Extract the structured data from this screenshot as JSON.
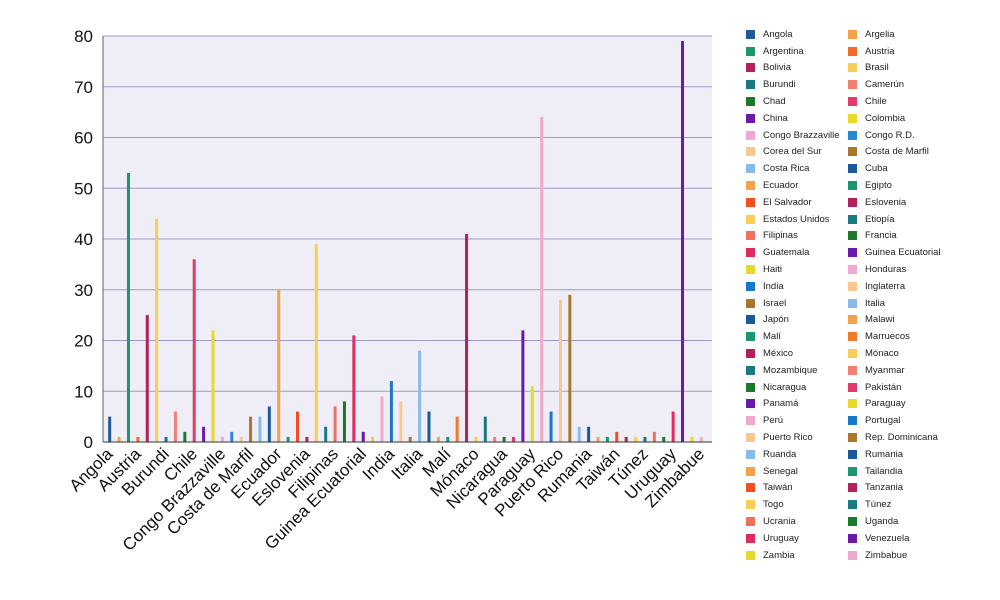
{
  "chart_data": {
    "type": "bar",
    "ylim": [
      0,
      80
    ],
    "yticks": [
      0,
      10,
      20,
      30,
      40,
      50,
      60,
      70,
      80
    ],
    "xticklabels": [
      "Angola",
      "Austria",
      "Burundi",
      "Chile",
      "Congo Brazzaville",
      "Costa de Marfil",
      "Ecuador",
      "Eslovenia",
      "Filipinas",
      "Guinea Ecuatorial",
      "India",
      "Italia",
      "Malí",
      "Mónaco",
      "Nicaragua",
      "Paraguay",
      "Puerto Rico",
      "Rumania",
      "Taiwán",
      "Túnez",
      "Uruguay",
      "Zimbabue"
    ],
    "grid": true,
    "legend_position": "right",
    "series": [
      {
        "name": "Angola",
        "color": "#1f5a94",
        "values": [
          5
        ]
      },
      {
        "name": "Argelia",
        "color": "#f5a04a",
        "values": [
          1
        ]
      },
      {
        "name": "Argentina",
        "color": "#1a9670",
        "values": [
          53
        ]
      },
      {
        "name": "Austria",
        "color": "#f26b28",
        "values": [
          1
        ]
      },
      {
        "name": "Bolivia",
        "color": "#b51f5c",
        "values": [
          25
        ]
      },
      {
        "name": "Brasil",
        "color": "#f7ce55",
        "values": [
          44
        ]
      },
      {
        "name": "Burundi",
        "color": "#1a7a82",
        "values": [
          1
        ]
      },
      {
        "name": "Camerún",
        "color": "#f28070",
        "values": [
          6
        ]
      },
      {
        "name": "Chad",
        "color": "#1a7a2a",
        "values": [
          2
        ]
      },
      {
        "name": "Chile",
        "color": "#e23a6a",
        "values": [
          36
        ]
      },
      {
        "name": "China",
        "color": "#6a1aa8",
        "values": [
          3
        ]
      },
      {
        "name": "Colombia",
        "color": "#e8d82a",
        "values": [
          22
        ]
      },
      {
        "name": "Congo Brazzaville",
        "color": "#f0a8cc",
        "values": [
          1
        ]
      },
      {
        "name": "Congo R.D.",
        "color": "#2888d8",
        "values": [
          2
        ]
      },
      {
        "name": "Corea del Sur",
        "color": "#f8c890",
        "values": [
          1
        ]
      },
      {
        "name": "Costa de Marfil",
        "color": "#a87828",
        "values": [
          5
        ]
      },
      {
        "name": "Costa Rica",
        "color": "#88bce8",
        "values": [
          5
        ]
      },
      {
        "name": "Cuba",
        "color": "#1a5a9a",
        "values": [
          7
        ]
      },
      {
        "name": "Ecuador",
        "color": "#f5a04a",
        "values": [
          30
        ]
      },
      {
        "name": "Egipto",
        "color": "#1a9670",
        "values": [
          1
        ]
      },
      {
        "name": "El Salvador",
        "color": "#f05020",
        "values": [
          6
        ]
      },
      {
        "name": "Eslovenia",
        "color": "#b51f5c",
        "values": [
          1
        ]
      },
      {
        "name": "Estados Unidos",
        "color": "#f7ce55",
        "values": [
          39
        ]
      },
      {
        "name": "Etiopía",
        "color": "#1a7a82",
        "values": [
          3
        ]
      },
      {
        "name": "Filipinas",
        "color": "#f07060",
        "values": [
          7
        ]
      },
      {
        "name": "Francia",
        "color": "#1a7a2a",
        "values": [
          8
        ]
      },
      {
        "name": "Guatemala",
        "color": "#e02a60",
        "values": [
          21
        ]
      },
      {
        "name": "Guinea Ecuatorial",
        "color": "#6a1aa8",
        "values": [
          2
        ]
      },
      {
        "name": "Haiti",
        "color": "#e8d82a",
        "values": [
          1
        ]
      },
      {
        "name": "Honduras",
        "color": "#f0a8cc",
        "values": [
          9
        ]
      },
      {
        "name": "India",
        "color": "#1a78c8",
        "values": [
          12
        ]
      },
      {
        "name": "Inglaterra",
        "color": "#f8c890",
        "values": [
          8
        ]
      },
      {
        "name": "Israel",
        "color": "#a87828",
        "values": [
          1
        ]
      },
      {
        "name": "Italia",
        "color": "#88bce8",
        "values": [
          18
        ]
      },
      {
        "name": "Japón",
        "color": "#1a5a9a",
        "values": [
          6
        ]
      },
      {
        "name": "Malawi",
        "color": "#f5a04a",
        "values": [
          1
        ]
      },
      {
        "name": "Malí",
        "color": "#1a9670",
        "values": [
          1
        ]
      },
      {
        "name": "Marruecos",
        "color": "#f07828",
        "values": [
          5
        ]
      },
      {
        "name": "México",
        "color": "#b51f5c",
        "values": [
          41
        ]
      },
      {
        "name": "Mónaco",
        "color": "#f7ce55",
        "values": [
          1
        ]
      },
      {
        "name": "Mozambique",
        "color": "#1a7a82",
        "values": [
          5
        ]
      },
      {
        "name": "Myanmar",
        "color": "#f28070",
        "values": [
          1
        ]
      },
      {
        "name": "Nicaragua",
        "color": "#1a7a2a",
        "values": [
          1
        ]
      },
      {
        "name": "Pakistán",
        "color": "#e23a6a",
        "values": [
          1
        ]
      },
      {
        "name": "Panamá",
        "color": "#6a1aa8",
        "values": [
          22
        ]
      },
      {
        "name": "Paraguay",
        "color": "#e8d82a",
        "values": [
          11
        ]
      },
      {
        "name": "Perú",
        "color": "#f0a8cc",
        "values": [
          64
        ]
      },
      {
        "name": "Portugal",
        "color": "#1a78c8",
        "values": [
          6
        ]
      },
      {
        "name": "Puerto Rico",
        "color": "#f8c890",
        "values": [
          28
        ]
      },
      {
        "name": "Rep. Dominicana",
        "color": "#a87828",
        "values": [
          29
        ]
      },
      {
        "name": "Ruanda",
        "color": "#88bce8",
        "values": [
          3
        ]
      },
      {
        "name": "Rumania",
        "color": "#1a5a9a",
        "values": [
          3
        ]
      },
      {
        "name": "Senegal",
        "color": "#f5a04a",
        "values": [
          1
        ]
      },
      {
        "name": "Tailandia",
        "color": "#1a9670",
        "values": [
          1
        ]
      },
      {
        "name": "Taiwán",
        "color": "#f05020",
        "values": [
          2
        ]
      },
      {
        "name": "Tanzania",
        "color": "#b51f5c",
        "values": [
          1
        ]
      },
      {
        "name": "Togo",
        "color": "#f7ce55",
        "values": [
          1
        ]
      },
      {
        "name": "Túnez",
        "color": "#1a7a82",
        "values": [
          1
        ]
      },
      {
        "name": "Ucrania",
        "color": "#f07060",
        "values": [
          2
        ]
      },
      {
        "name": "Uganda",
        "color": "#1a7a2a",
        "values": [
          1
        ]
      },
      {
        "name": "Uruguay",
        "color": "#e02a60",
        "values": [
          6
        ]
      },
      {
        "name": "Venezuela",
        "color": "#6a1aa8",
        "values": [
          79
        ]
      },
      {
        "name": "Zambia",
        "color": "#e8d82a",
        "values": [
          1
        ]
      },
      {
        "name": "Zimbabue",
        "color": "#f0a8cc",
        "values": [
          1
        ]
      }
    ]
  }
}
